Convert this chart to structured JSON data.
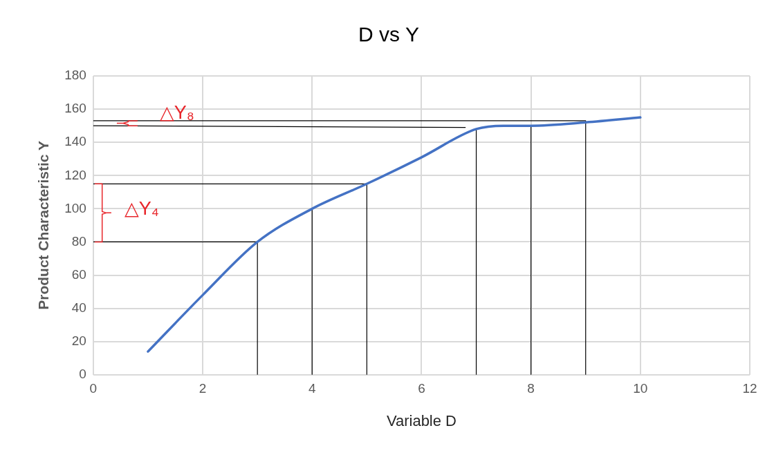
{
  "chart_data": {
    "type": "line",
    "title": "D vs Y",
    "xlabel": "Variable D",
    "ylabel": "Product Characteristic Y",
    "xlim": [
      0,
      12
    ],
    "xticks": [
      0,
      2,
      4,
      6,
      8,
      10,
      12
    ],
    "ylim": [
      0,
      180
    ],
    "yticks": [
      0,
      20,
      40,
      60,
      80,
      100,
      120,
      140,
      160,
      180
    ],
    "grid": true,
    "legend": false,
    "marker": "none",
    "line_style": "solid",
    "series": [
      {
        "color": "#4472c4",
        "x": [
          1,
          2,
          3,
          4,
          5,
          6,
          7,
          7.5,
          8,
          9,
          10
        ],
        "values": [
          14,
          48,
          80,
          100,
          115,
          131,
          148,
          150,
          150,
          152,
          155
        ]
      },
      {
        "color": "#000000",
        "x": [
          0,
          3,
          3
        ],
        "values": [
          80,
          80,
          0
        ]
      },
      {
        "color": "#000000",
        "x": [
          4,
          4
        ],
        "values": [
          100,
          0
        ]
      },
      {
        "color": "#000000",
        "x": [
          0,
          5,
          5
        ],
        "values": [
          115,
          115,
          0
        ]
      },
      {
        "color": "#000000",
        "x": [
          0,
          6.8
        ],
        "values": [
          150,
          149
        ]
      },
      {
        "color": "#000000",
        "x": [
          7,
          7
        ],
        "values": [
          148,
          0
        ]
      },
      {
        "color": "#000000",
        "x": [
          8,
          8
        ],
        "values": [
          150,
          0
        ]
      },
      {
        "color": "#000000",
        "x": [
          0,
          9,
          9
        ],
        "values": [
          153,
          153,
          0
        ]
      }
    ],
    "annotations": [
      "△Y₄",
      "△Y₈"
    ]
  }
}
